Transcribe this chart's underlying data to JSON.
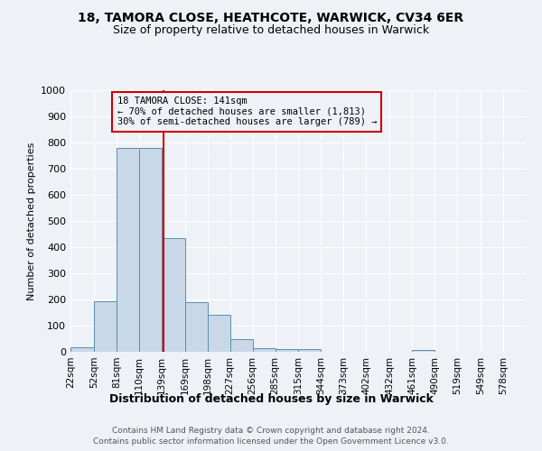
{
  "title1": "18, TAMORA CLOSE, HEATHCOTE, WARWICK, CV34 6ER",
  "title2": "Size of property relative to detached houses in Warwick",
  "xlabel": "Distribution of detached houses by size in Warwick",
  "ylabel": "Number of detached properties",
  "footnote1": "Contains HM Land Registry data © Crown copyright and database right 2024.",
  "footnote2": "Contains public sector information licensed under the Open Government Licence v3.0.",
  "annotation_title": "18 TAMORA CLOSE: 141sqm",
  "annotation_line1": "← 70% of detached houses are smaller (1,813)",
  "annotation_line2": "30% of semi-detached houses are larger (789) →",
  "property_size": 141,
  "bin_edges": [
    22,
    52,
    81,
    110,
    139,
    169,
    198,
    227,
    256,
    285,
    315,
    344,
    373,
    402,
    432,
    461,
    490,
    519,
    549,
    578,
    607
  ],
  "bar_heights": [
    18,
    193,
    780,
    780,
    435,
    190,
    143,
    48,
    14,
    12,
    12,
    0,
    0,
    0,
    0,
    8,
    0,
    0,
    0,
    0
  ],
  "bar_color": "#c8d8e8",
  "bar_edge_color": "#5b8db0",
  "vline_color": "#cc0000",
  "background_color": "#eef2f7",
  "grid_color": "#ffffff",
  "ylim": [
    0,
    1000
  ],
  "yticks": [
    0,
    100,
    200,
    300,
    400,
    500,
    600,
    700,
    800,
    900,
    1000
  ],
  "title1_fontsize": 10,
  "title2_fontsize": 9,
  "ylabel_fontsize": 8,
  "xlabel_fontsize": 9,
  "tick_fontsize": 7.5,
  "footnote_fontsize": 6.5,
  "annotation_fontsize": 7.5
}
